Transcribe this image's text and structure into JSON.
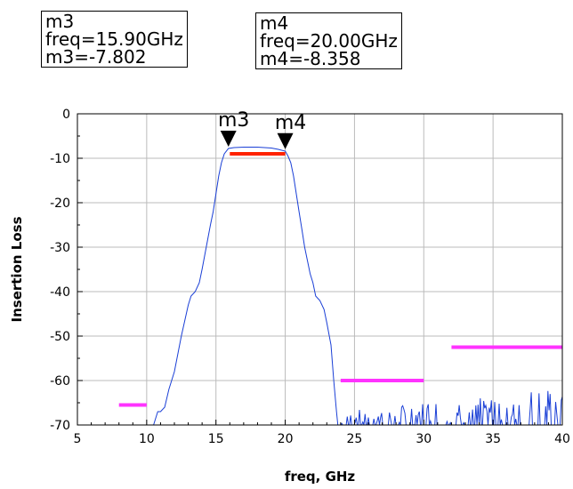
{
  "marker_boxes": [
    {
      "name": "m3",
      "freq_line": "freq=15.90GHz",
      "value_line": "m3=-7.802"
    },
    {
      "name": "m4",
      "freq_line": "freq=20.00GHz",
      "value_line": "m4=-8.358"
    }
  ],
  "chart_data": {
    "type": "line",
    "xlabel": "freq, GHz",
    "ylabel": "Insertion Loss",
    "xlim": [
      5,
      40
    ],
    "ylim": [
      -70,
      0
    ],
    "xticks": [
      5,
      10,
      15,
      20,
      25,
      30,
      35,
      40
    ],
    "yticks": [
      0,
      -10,
      -20,
      -30,
      -40,
      -50,
      -60,
      -70
    ],
    "grid": true,
    "colors": {
      "trace": "#1a3fd6",
      "passband_mask": "#ff2200",
      "stopband_mask": "#ff33ff",
      "grid": "#bbbbbb"
    },
    "series": [
      {
        "x": [
          10.5,
          10.8,
          11.0,
          11.3,
          11.6,
          12.0,
          12.5,
          13.0,
          13.2,
          13.5,
          13.8,
          14.0,
          14.3,
          14.6,
          14.8,
          15.0,
          15.2,
          15.4,
          15.6,
          15.9,
          16.3,
          17.0,
          18.0,
          19.0,
          19.5,
          20.0,
          20.2,
          20.4,
          20.6,
          20.8,
          21.0,
          21.2,
          21.4,
          21.6,
          21.8,
          22.0,
          22.2,
          22.5,
          22.8,
          23.0,
          23.3,
          23.5,
          23.7,
          23.8
        ],
        "y": [
          -70,
          -67,
          -67,
          -66,
          -62,
          -58,
          -50,
          -43,
          -41,
          -40,
          -38,
          -35,
          -30,
          -25,
          -22,
          -18,
          -14,
          -11,
          -9,
          -7.8,
          -7.6,
          -7.5,
          -7.5,
          -7.7,
          -8.0,
          -8.4,
          -9.5,
          -11,
          -14,
          -18,
          -22,
          -26,
          -30,
          -33,
          -36,
          -38,
          -41,
          -42,
          -44,
          -47,
          -52,
          -60,
          -67,
          -70
        ]
      }
    ],
    "noise_band": {
      "x_from": 24,
      "x_to": 40,
      "y_floor": -70,
      "y_top_start": -67,
      "y_top_end": -61
    },
    "masks": [
      {
        "x": [
          8,
          10
        ],
        "y": -65.5,
        "color": "#ff33ff"
      },
      {
        "x": [
          16,
          20
        ],
        "y": -9,
        "color": "#ff2200"
      },
      {
        "x": [
          24,
          30
        ],
        "y": -60,
        "color": "#ff33ff"
      },
      {
        "x": [
          32,
          40
        ],
        "y": -52.5,
        "color": "#ff33ff"
      }
    ],
    "markers": [
      {
        "name": "m3",
        "x": 15.9,
        "y": -7.802
      },
      {
        "name": "m4",
        "x": 20.0,
        "y": -8.358
      }
    ]
  }
}
